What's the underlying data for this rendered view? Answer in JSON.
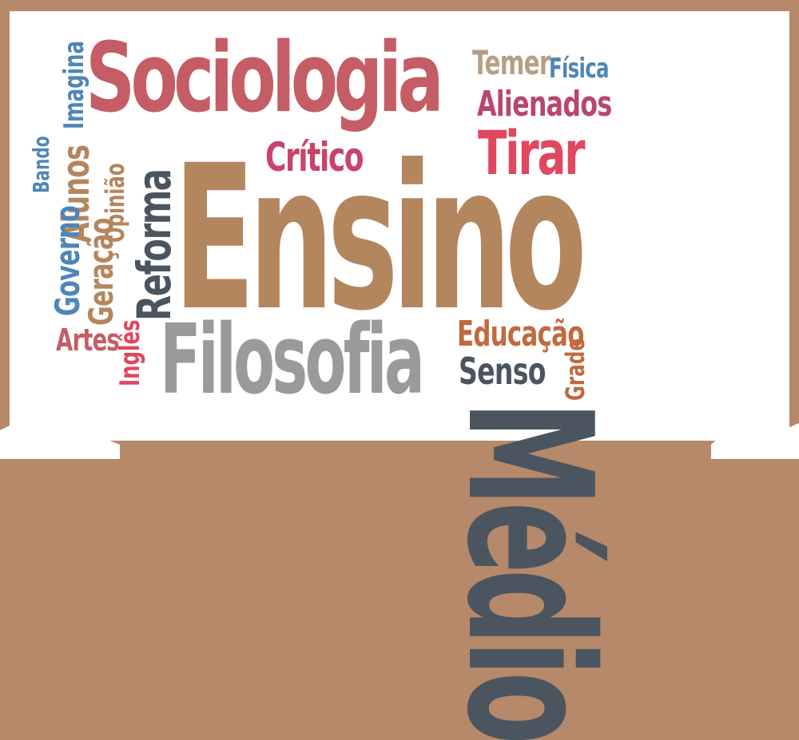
{
  "words": {
    "sociologia": {
      "text": "Sociologia",
      "color": "#c55d66"
    },
    "ensino": {
      "text": "Ensino",
      "color": "#b4865e"
    },
    "medio": {
      "text": "Médio",
      "color": "#4b555f"
    },
    "filosofia": {
      "text": "Filosofia",
      "color": "#9a9a9a"
    },
    "reforma": {
      "text": "Reforma",
      "color": "#4b555f"
    },
    "tirar": {
      "text": "Tirar",
      "color": "#e0485f"
    },
    "critico": {
      "text": "Crítico",
      "color": "#c8436a"
    },
    "temer": {
      "text": "Temer",
      "color": "#b79f86"
    },
    "fisica": {
      "text": "Física",
      "color": "#4f86b8"
    },
    "alienados": {
      "text": "Alienados",
      "color": "#b9466e"
    },
    "educacao": {
      "text": "Educação",
      "color": "#c06a3e"
    },
    "senso": {
      "text": "Senso",
      "color": "#4b555f"
    },
    "grade": {
      "text": "Grade",
      "color": "#c06a3e"
    },
    "imagina": {
      "text": "Imagina",
      "color": "#4f86b8"
    },
    "alunos": {
      "text": "Alunos",
      "color": "#b4865e"
    },
    "bando": {
      "text": "Bando",
      "color": "#4f86b8"
    },
    "opiniao": {
      "text": "Opinião",
      "color": "#b4865e"
    },
    "governo": {
      "text": "Governo",
      "color": "#4f86b8"
    },
    "geracao": {
      "text": "Geração",
      "color": "#b4865e"
    },
    "artes": {
      "text": "Artes",
      "color": "#c55d66"
    },
    "ingles": {
      "text": "Inglês",
      "color": "#e0485f"
    }
  }
}
